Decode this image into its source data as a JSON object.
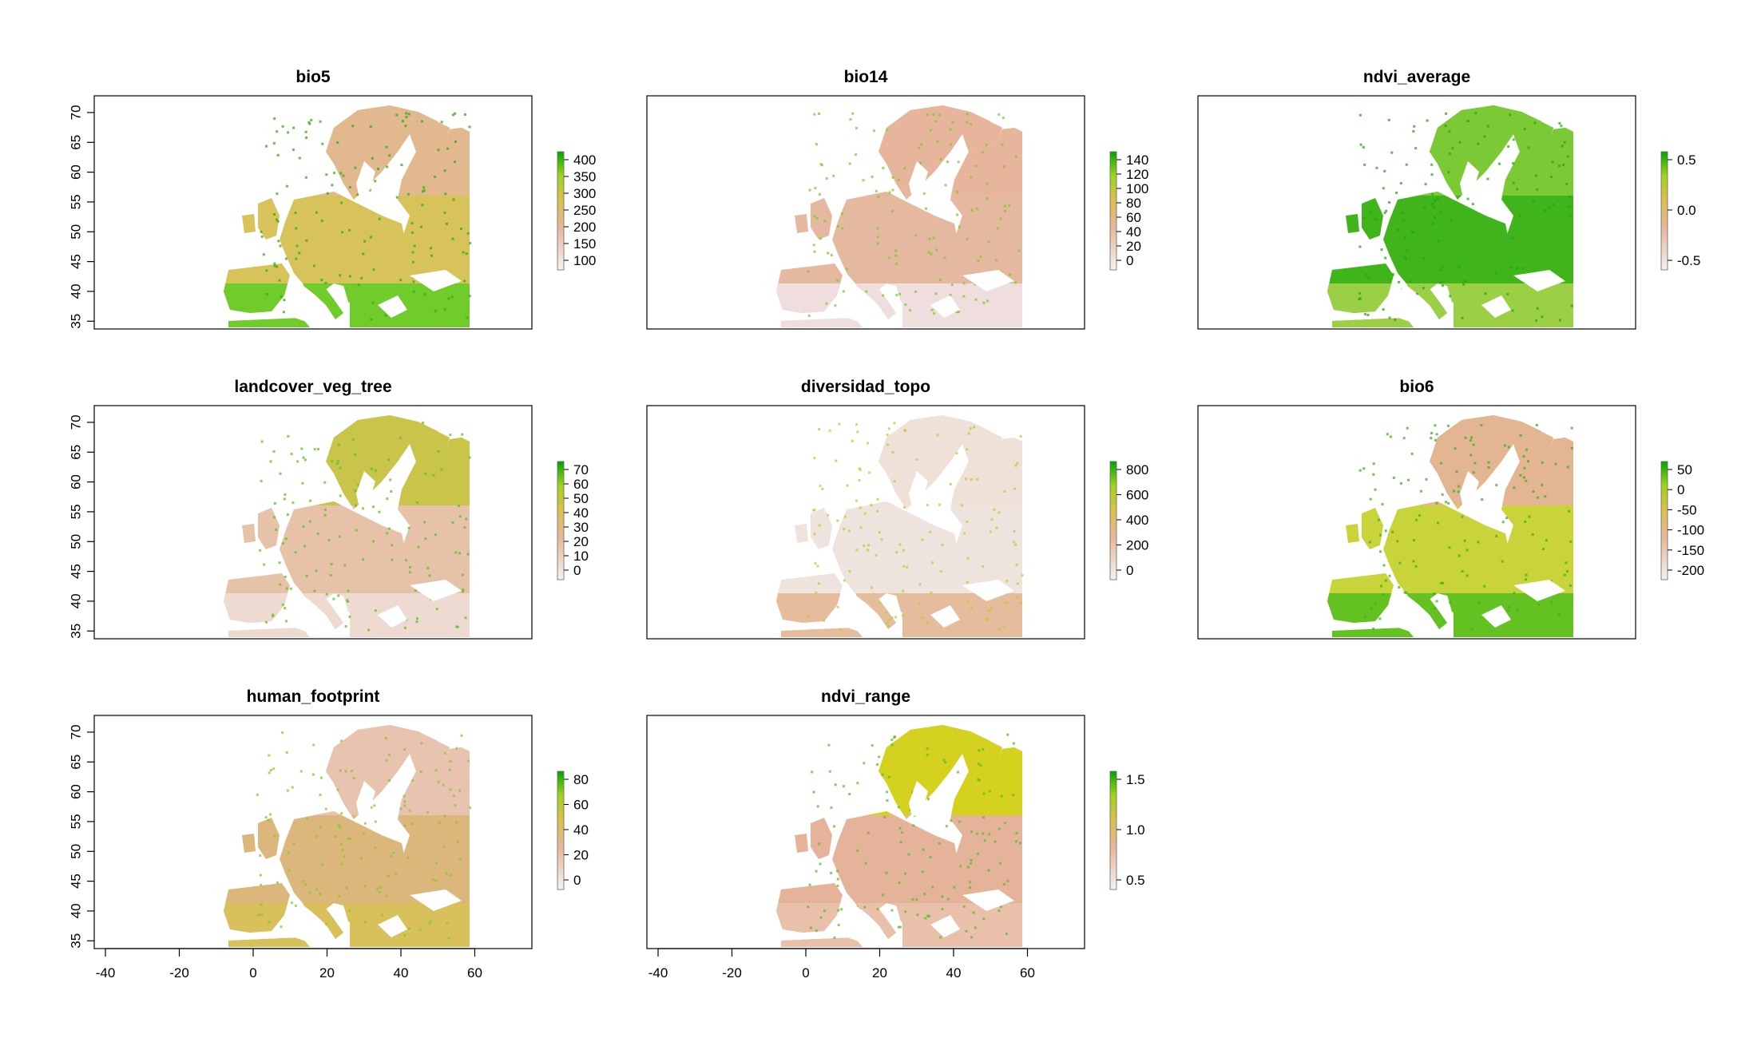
{
  "figure": {
    "x_ticks": [
      "-40",
      "-20",
      "0",
      "20",
      "40",
      "60"
    ],
    "y_ticks": [
      "35",
      "40",
      "45",
      "50",
      "55",
      "60",
      "65",
      "70"
    ],
    "colors": {
      "low": "#f2f2f2",
      "mid_low": "#e8b79a",
      "mid": "#d9bd4a",
      "high_mid": "#9fd21a",
      "high": "#00a600"
    }
  },
  "panels": [
    {
      "title": "bio5",
      "legend_ticks": [
        "400",
        "350",
        "300",
        "250",
        "200",
        "150",
        "100"
      ],
      "scheme": "warm"
    },
    {
      "title": "bio14",
      "legend_ticks": [
        "140",
        "120",
        "100",
        "80",
        "60",
        "40",
        "20",
        "0"
      ],
      "scheme": "dry"
    },
    {
      "title": "ndvi_average",
      "legend_ticks": [
        "0.5",
        "0.0",
        "-0.5"
      ],
      "scheme": "green"
    },
    {
      "title": "landcover_veg_tree",
      "legend_ticks": [
        "70",
        "60",
        "50",
        "40",
        "30",
        "20",
        "10",
        "0"
      ],
      "scheme": "tree"
    },
    {
      "title": "diversidad_topo",
      "legend_ticks": [
        "800",
        "600",
        "400",
        "200",
        "0"
      ],
      "scheme": "topo"
    },
    {
      "title": "bio6",
      "legend_ticks": [
        "50",
        "0",
        "-50",
        "-100",
        "-150",
        "-200"
      ],
      "scheme": "cold"
    },
    {
      "title": "human_footprint",
      "legend_ticks": [
        "80",
        "60",
        "40",
        "20",
        "0"
      ],
      "scheme": "human"
    },
    {
      "title": "ndvi_range",
      "legend_ticks": [
        "1.5",
        "1.0",
        "0.5"
      ],
      "scheme": "range"
    }
  ]
}
